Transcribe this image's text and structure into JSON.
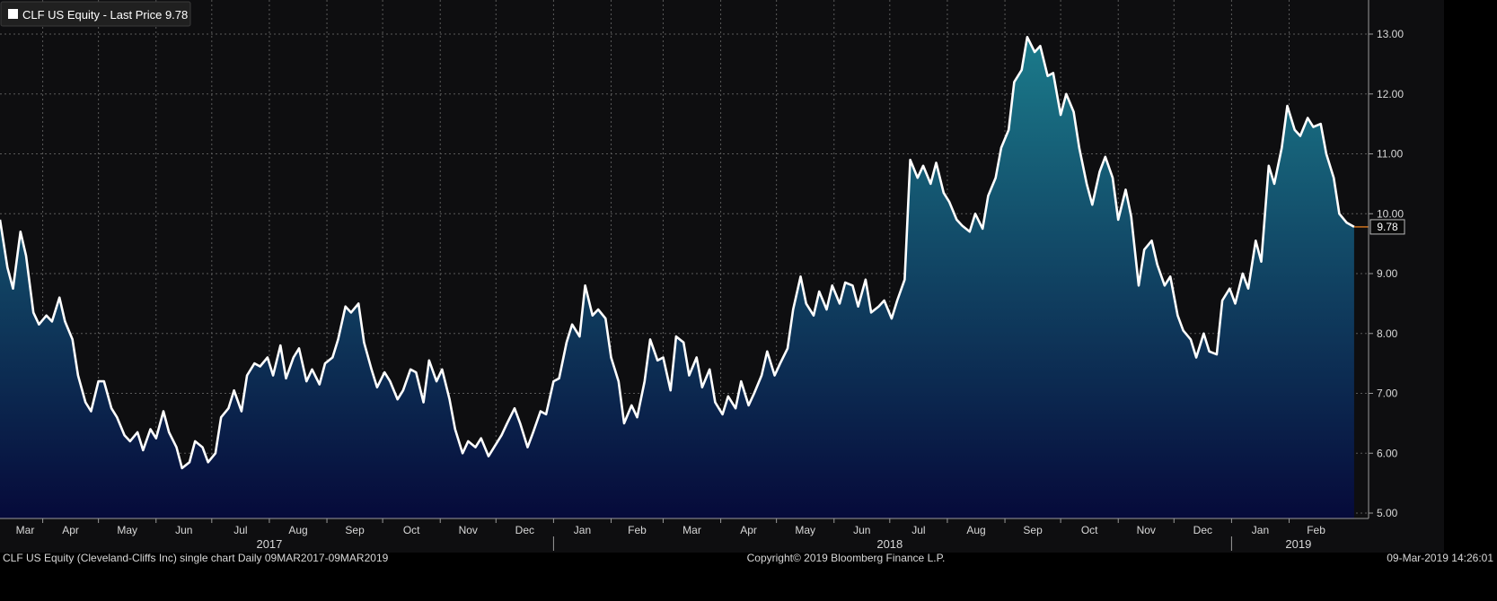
{
  "legend": {
    "text": "CLF US Equity - Last Price 9.78",
    "swatch_color": "#ffffff"
  },
  "footer": {
    "left": "CLF US Equity (Cleveland-Cliffs Inc) single chart  Daily 09MAR2017-09MAR2019",
    "center": "Copyright© 2019 Bloomberg Finance L.P.",
    "right": "09-Mar-2019 14:26:01"
  },
  "colors": {
    "background": "#0e0e10",
    "line": "#ffffff",
    "area_top": "#1b7b8b",
    "area_bottom": "#060a3a",
    "last_price_marker": "#e07b1f"
  },
  "chart_data": {
    "type": "area",
    "title": "",
    "xlabel": "",
    "ylabel": "",
    "x_range": [
      "2017-03-09",
      "2019-03-09"
    ],
    "ylim": [
      4.9,
      13.5
    ],
    "y_ticks": [
      5.0,
      6.0,
      7.0,
      8.0,
      9.0,
      10.0,
      11.0,
      12.0,
      13.0
    ],
    "y_tick_labels": [
      "5.00",
      "6.00",
      "7.00",
      "8.00",
      "9.00",
      "10.00",
      "11.00",
      "12.00",
      "13.00"
    ],
    "x_month_ticks": [
      {
        "date": "2017-03-01",
        "label": "Mar"
      },
      {
        "date": "2017-04-01",
        "label": "Apr"
      },
      {
        "date": "2017-05-01",
        "label": "May"
      },
      {
        "date": "2017-06-01",
        "label": "Jun"
      },
      {
        "date": "2017-07-01",
        "label": "Jul"
      },
      {
        "date": "2017-08-01",
        "label": "Aug"
      },
      {
        "date": "2017-09-01",
        "label": "Sep"
      },
      {
        "date": "2017-10-01",
        "label": "Oct"
      },
      {
        "date": "2017-11-01",
        "label": "Nov"
      },
      {
        "date": "2017-12-01",
        "label": "Dec"
      },
      {
        "date": "2018-01-01",
        "label": "Jan"
      },
      {
        "date": "2018-02-01",
        "label": "Feb"
      },
      {
        "date": "2018-03-01",
        "label": "Mar"
      },
      {
        "date": "2018-04-01",
        "label": "Apr"
      },
      {
        "date": "2018-05-01",
        "label": "May"
      },
      {
        "date": "2018-06-01",
        "label": "Jun"
      },
      {
        "date": "2018-07-01",
        "label": "Jul"
      },
      {
        "date": "2018-08-01",
        "label": "Aug"
      },
      {
        "date": "2018-09-01",
        "label": "Sep"
      },
      {
        "date": "2018-10-01",
        "label": "Oct"
      },
      {
        "date": "2018-11-01",
        "label": "Nov"
      },
      {
        "date": "2018-12-01",
        "label": "Dec"
      },
      {
        "date": "2019-01-01",
        "label": "Jan"
      },
      {
        "date": "2019-02-01",
        "label": "Feb"
      }
    ],
    "year_labels": [
      {
        "year": "2017",
        "center_date": "2017-08-01"
      },
      {
        "year": "2018",
        "center_date": "2018-07-01"
      },
      {
        "year": "2019",
        "center_date": "2019-02-06"
      }
    ],
    "year_dividers": [
      "2018-01-01",
      "2019-01-01"
    ],
    "grid": true,
    "legend_position": "top-left",
    "last_price": 9.78,
    "last_price_label": "9.78",
    "series": [
      {
        "name": "CLF US Equity - Last Price",
        "points": [
          [
            "2017-03-09",
            9.9
          ],
          [
            "2017-03-13",
            9.1
          ],
          [
            "2017-03-16",
            8.75
          ],
          [
            "2017-03-20",
            9.7
          ],
          [
            "2017-03-23",
            9.3
          ],
          [
            "2017-03-27",
            8.35
          ],
          [
            "2017-03-30",
            8.15
          ],
          [
            "2017-04-03",
            8.3
          ],
          [
            "2017-04-06",
            8.2
          ],
          [
            "2017-04-10",
            8.6
          ],
          [
            "2017-04-13",
            8.2
          ],
          [
            "2017-04-17",
            7.9
          ],
          [
            "2017-04-20",
            7.3
          ],
          [
            "2017-04-24",
            6.85
          ],
          [
            "2017-04-27",
            6.7
          ],
          [
            "2017-05-01",
            7.2
          ],
          [
            "2017-05-04",
            7.2
          ],
          [
            "2017-05-08",
            6.75
          ],
          [
            "2017-05-11",
            6.6
          ],
          [
            "2017-05-15",
            6.3
          ],
          [
            "2017-05-18",
            6.2
          ],
          [
            "2017-05-22",
            6.35
          ],
          [
            "2017-05-25",
            6.05
          ],
          [
            "2017-05-29",
            6.4
          ],
          [
            "2017-06-01",
            6.25
          ],
          [
            "2017-06-05",
            6.7
          ],
          [
            "2017-06-08",
            6.35
          ],
          [
            "2017-06-12",
            6.1
          ],
          [
            "2017-06-15",
            5.75
          ],
          [
            "2017-06-19",
            5.85
          ],
          [
            "2017-06-22",
            6.2
          ],
          [
            "2017-06-26",
            6.1
          ],
          [
            "2017-06-29",
            5.85
          ],
          [
            "2017-07-03",
            6.0
          ],
          [
            "2017-07-06",
            6.6
          ],
          [
            "2017-07-10",
            6.75
          ],
          [
            "2017-07-13",
            7.05
          ],
          [
            "2017-07-17",
            6.7
          ],
          [
            "2017-07-20",
            7.3
          ],
          [
            "2017-07-24",
            7.5
          ],
          [
            "2017-07-27",
            7.45
          ],
          [
            "2017-07-31",
            7.6
          ],
          [
            "2017-08-03",
            7.3
          ],
          [
            "2017-08-07",
            7.8
          ],
          [
            "2017-08-10",
            7.25
          ],
          [
            "2017-08-14",
            7.6
          ],
          [
            "2017-08-17",
            7.75
          ],
          [
            "2017-08-21",
            7.2
          ],
          [
            "2017-08-24",
            7.4
          ],
          [
            "2017-08-28",
            7.15
          ],
          [
            "2017-08-31",
            7.5
          ],
          [
            "2017-09-04",
            7.6
          ],
          [
            "2017-09-07",
            7.9
          ],
          [
            "2017-09-11",
            8.45
          ],
          [
            "2017-09-14",
            8.35
          ],
          [
            "2017-09-18",
            8.5
          ],
          [
            "2017-09-21",
            7.85
          ],
          [
            "2017-09-25",
            7.4
          ],
          [
            "2017-09-28",
            7.1
          ],
          [
            "2017-10-02",
            7.35
          ],
          [
            "2017-10-05",
            7.2
          ],
          [
            "2017-10-09",
            6.9
          ],
          [
            "2017-10-12",
            7.05
          ],
          [
            "2017-10-16",
            7.4
          ],
          [
            "2017-10-19",
            7.35
          ],
          [
            "2017-10-23",
            6.85
          ],
          [
            "2017-10-26",
            7.55
          ],
          [
            "2017-10-30",
            7.2
          ],
          [
            "2017-11-02",
            7.4
          ],
          [
            "2017-11-06",
            6.9
          ],
          [
            "2017-11-09",
            6.4
          ],
          [
            "2017-11-13",
            6.0
          ],
          [
            "2017-11-16",
            6.2
          ],
          [
            "2017-11-20",
            6.1
          ],
          [
            "2017-11-23",
            6.25
          ],
          [
            "2017-11-27",
            5.95
          ],
          [
            "2017-11-30",
            6.1
          ],
          [
            "2017-12-04",
            6.3
          ],
          [
            "2017-12-07",
            6.5
          ],
          [
            "2017-12-11",
            6.75
          ],
          [
            "2017-12-14",
            6.5
          ],
          [
            "2017-12-18",
            6.1
          ],
          [
            "2017-12-21",
            6.35
          ],
          [
            "2017-12-25",
            6.7
          ],
          [
            "2017-12-28",
            6.65
          ],
          [
            "2018-01-01",
            7.2
          ],
          [
            "2018-01-04",
            7.25
          ],
          [
            "2018-01-08",
            7.85
          ],
          [
            "2018-01-11",
            8.15
          ],
          [
            "2018-01-15",
            7.95
          ],
          [
            "2018-01-18",
            8.8
          ],
          [
            "2018-01-22",
            8.3
          ],
          [
            "2018-01-25",
            8.4
          ],
          [
            "2018-01-29",
            8.25
          ],
          [
            "2018-02-01",
            7.6
          ],
          [
            "2018-02-05",
            7.2
          ],
          [
            "2018-02-08",
            6.5
          ],
          [
            "2018-02-12",
            6.8
          ],
          [
            "2018-02-15",
            6.6
          ],
          [
            "2018-02-19",
            7.2
          ],
          [
            "2018-02-22",
            7.9
          ],
          [
            "2018-02-26",
            7.55
          ],
          [
            "2018-03-01",
            7.6
          ],
          [
            "2018-03-05",
            7.05
          ],
          [
            "2018-03-08",
            7.95
          ],
          [
            "2018-03-12",
            7.85
          ],
          [
            "2018-03-15",
            7.3
          ],
          [
            "2018-03-19",
            7.6
          ],
          [
            "2018-03-22",
            7.1
          ],
          [
            "2018-03-26",
            7.4
          ],
          [
            "2018-03-29",
            6.85
          ],
          [
            "2018-04-02",
            6.65
          ],
          [
            "2018-04-05",
            6.95
          ],
          [
            "2018-04-09",
            6.75
          ],
          [
            "2018-04-12",
            7.2
          ],
          [
            "2018-04-16",
            6.8
          ],
          [
            "2018-04-19",
            7.0
          ],
          [
            "2018-04-23",
            7.3
          ],
          [
            "2018-04-26",
            7.7
          ],
          [
            "2018-04-30",
            7.3
          ],
          [
            "2018-05-03",
            7.5
          ],
          [
            "2018-05-07",
            7.75
          ],
          [
            "2018-05-10",
            8.4
          ],
          [
            "2018-05-14",
            8.95
          ],
          [
            "2018-05-17",
            8.5
          ],
          [
            "2018-05-21",
            8.3
          ],
          [
            "2018-05-24",
            8.7
          ],
          [
            "2018-05-28",
            8.4
          ],
          [
            "2018-05-31",
            8.8
          ],
          [
            "2018-06-04",
            8.5
          ],
          [
            "2018-06-07",
            8.85
          ],
          [
            "2018-06-11",
            8.8
          ],
          [
            "2018-06-14",
            8.45
          ],
          [
            "2018-06-18",
            8.9
          ],
          [
            "2018-06-21",
            8.35
          ],
          [
            "2018-06-25",
            8.45
          ],
          [
            "2018-06-28",
            8.55
          ],
          [
            "2018-07-02",
            8.25
          ],
          [
            "2018-07-05",
            8.55
          ],
          [
            "2018-07-09",
            8.9
          ],
          [
            "2018-07-12",
            10.9
          ],
          [
            "2018-07-16",
            10.6
          ],
          [
            "2018-07-19",
            10.8
          ],
          [
            "2018-07-23",
            10.5
          ],
          [
            "2018-07-26",
            10.85
          ],
          [
            "2018-07-30",
            10.35
          ],
          [
            "2018-08-02",
            10.2
          ],
          [
            "2018-08-06",
            9.9
          ],
          [
            "2018-08-09",
            9.8
          ],
          [
            "2018-08-13",
            9.7
          ],
          [
            "2018-08-16",
            10.0
          ],
          [
            "2018-08-20",
            9.75
          ],
          [
            "2018-08-23",
            10.3
          ],
          [
            "2018-08-27",
            10.6
          ],
          [
            "2018-08-30",
            11.1
          ],
          [
            "2018-09-03",
            11.4
          ],
          [
            "2018-09-06",
            12.2
          ],
          [
            "2018-09-10",
            12.4
          ],
          [
            "2018-09-13",
            12.95
          ],
          [
            "2018-09-17",
            12.7
          ],
          [
            "2018-09-20",
            12.8
          ],
          [
            "2018-09-24",
            12.3
          ],
          [
            "2018-09-27",
            12.35
          ],
          [
            "2018-10-01",
            11.65
          ],
          [
            "2018-10-04",
            12.0
          ],
          [
            "2018-10-08",
            11.7
          ],
          [
            "2018-10-11",
            11.1
          ],
          [
            "2018-10-15",
            10.5
          ],
          [
            "2018-10-18",
            10.15
          ],
          [
            "2018-10-22",
            10.7
          ],
          [
            "2018-10-25",
            10.95
          ],
          [
            "2018-10-29",
            10.6
          ],
          [
            "2018-11-01",
            9.9
          ],
          [
            "2018-11-05",
            10.4
          ],
          [
            "2018-11-08",
            9.95
          ],
          [
            "2018-11-12",
            8.8
          ],
          [
            "2018-11-15",
            9.4
          ],
          [
            "2018-11-19",
            9.55
          ],
          [
            "2018-11-22",
            9.15
          ],
          [
            "2018-11-26",
            8.8
          ],
          [
            "2018-11-29",
            8.95
          ],
          [
            "2018-12-03",
            8.3
          ],
          [
            "2018-12-06",
            8.05
          ],
          [
            "2018-12-10",
            7.9
          ],
          [
            "2018-12-13",
            7.6
          ],
          [
            "2018-12-17",
            8.0
          ],
          [
            "2018-12-20",
            7.7
          ],
          [
            "2018-12-24",
            7.65
          ],
          [
            "2018-12-27",
            8.55
          ],
          [
            "2018-12-31",
            8.75
          ],
          [
            "2019-01-03",
            8.5
          ],
          [
            "2019-01-07",
            9.0
          ],
          [
            "2019-01-10",
            8.75
          ],
          [
            "2019-01-14",
            9.55
          ],
          [
            "2019-01-17",
            9.2
          ],
          [
            "2019-01-21",
            10.8
          ],
          [
            "2019-01-24",
            10.5
          ],
          [
            "2019-01-28",
            11.1
          ],
          [
            "2019-01-31",
            11.8
          ],
          [
            "2019-02-04",
            11.4
          ],
          [
            "2019-02-07",
            11.3
          ],
          [
            "2019-02-11",
            11.6
          ],
          [
            "2019-02-14",
            11.45
          ],
          [
            "2019-02-18",
            11.5
          ],
          [
            "2019-02-21",
            11.0
          ],
          [
            "2019-02-25",
            10.6
          ],
          [
            "2019-02-28",
            10.0
          ],
          [
            "2019-03-04",
            9.85
          ],
          [
            "2019-03-08",
            9.78
          ]
        ]
      }
    ]
  }
}
